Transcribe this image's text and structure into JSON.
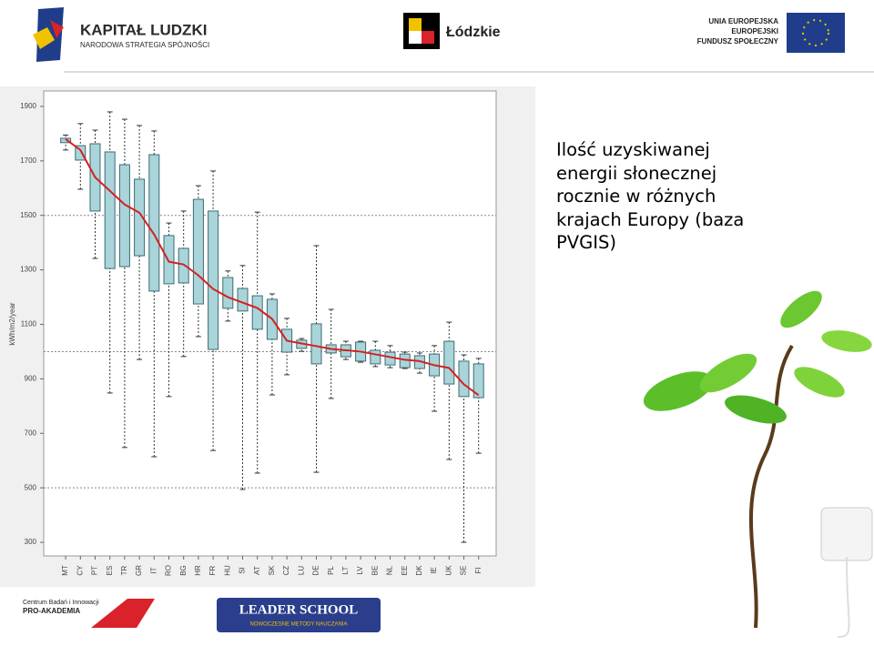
{
  "header": {
    "logo1_title": "KAPITAŁ LUDZKI",
    "logo1_subtitle": "NARODOWA STRATEGIA SPÓJNOŚCI",
    "logo2": "Łódzkie",
    "logo3_lines": [
      "UNIA EUROPEJSKA",
      "EUROPEJSKI",
      "FUNDUSZ SPOŁECZNY"
    ]
  },
  "chart_data": {
    "type": "box",
    "y_label": "kWh/m2/year",
    "categories": [
      "MT",
      "CY",
      "PT",
      "ES",
      "TR",
      "GR",
      "IT",
      "RO",
      "BG",
      "HR",
      "FR",
      "HU",
      "SI",
      "AT",
      "SK",
      "CZ",
      "LU",
      "DE",
      "PL",
      "LT",
      "LV",
      "BE",
      "NL",
      "EE",
      "DK",
      "IE",
      "UK",
      "SE",
      "FI"
    ],
    "low": [
      1740,
      1596,
      1342,
      848,
      648,
      971,
      614,
      835,
      982,
      1055,
      637,
      1112,
      494,
      554,
      841,
      915,
      1001,
      557,
      828,
      971,
      961,
      945,
      941,
      938,
      921,
      781,
      604,
      300,
      627
    ],
    "q1": [
      1767,
      1703,
      1516,
      1305,
      1312,
      1352,
      1222,
      1249,
      1252,
      1175,
      1008,
      1159,
      1149,
      1082,
      1045,
      998,
      1012,
      955,
      995,
      981,
      965,
      955,
      951,
      941,
      938,
      911,
      881,
      835,
      831
    ],
    "q3": [
      1783,
      1756,
      1763,
      1733,
      1686,
      1633,
      1723,
      1426,
      1379,
      1559,
      1516,
      1272,
      1232,
      1205,
      1192,
      1082,
      1042,
      1102,
      1025,
      1025,
      1035,
      1005,
      998,
      991,
      985,
      991,
      1038,
      965,
      955
    ],
    "high": [
      1795,
      1837,
      1813,
      1880,
      1853,
      1830,
      1810,
      1472,
      1516,
      1609,
      1663,
      1296,
      1316,
      1512,
      1212,
      1122,
      1048,
      1389,
      1155,
      1038,
      1038,
      1038,
      1022,
      998,
      995,
      1022,
      1108,
      988,
      975
    ],
    "box_color": "#a9d4da",
    "box_edge": "#3d6b73",
    "line": {
      "color": "#d62020",
      "values": [
        1780,
        1740,
        1640,
        1590,
        1540,
        1510,
        1430,
        1330,
        1320,
        1280,
        1230,
        1200,
        1180,
        1160,
        1120,
        1040,
        1030,
        1020,
        1010,
        1005,
        1000,
        990,
        980,
        970,
        965,
        950,
        940,
        880,
        840
      ]
    },
    "ylim": [
      250,
      1950
    ],
    "yticks": [
      300,
      500,
      700,
      900,
      1100,
      1300,
      1500,
      1700,
      1900
    ],
    "reference_lines": [
      500,
      1000,
      1500
    ]
  },
  "slide_text": [
    "Ilość uzyskiwanej",
    "energii słonecznej",
    "rocznie w różnych",
    "krajach  Europy (baza",
    "PVGIS)"
  ],
  "footer": {
    "logo1_lines": [
      "Centrum Badań i Innowacji",
      "PRO-AKADEMIA"
    ],
    "logo2_title": "LEADER SCHOOL",
    "logo2_subtitle": "NOWOCZESNE METODY NAUCZANIA"
  }
}
